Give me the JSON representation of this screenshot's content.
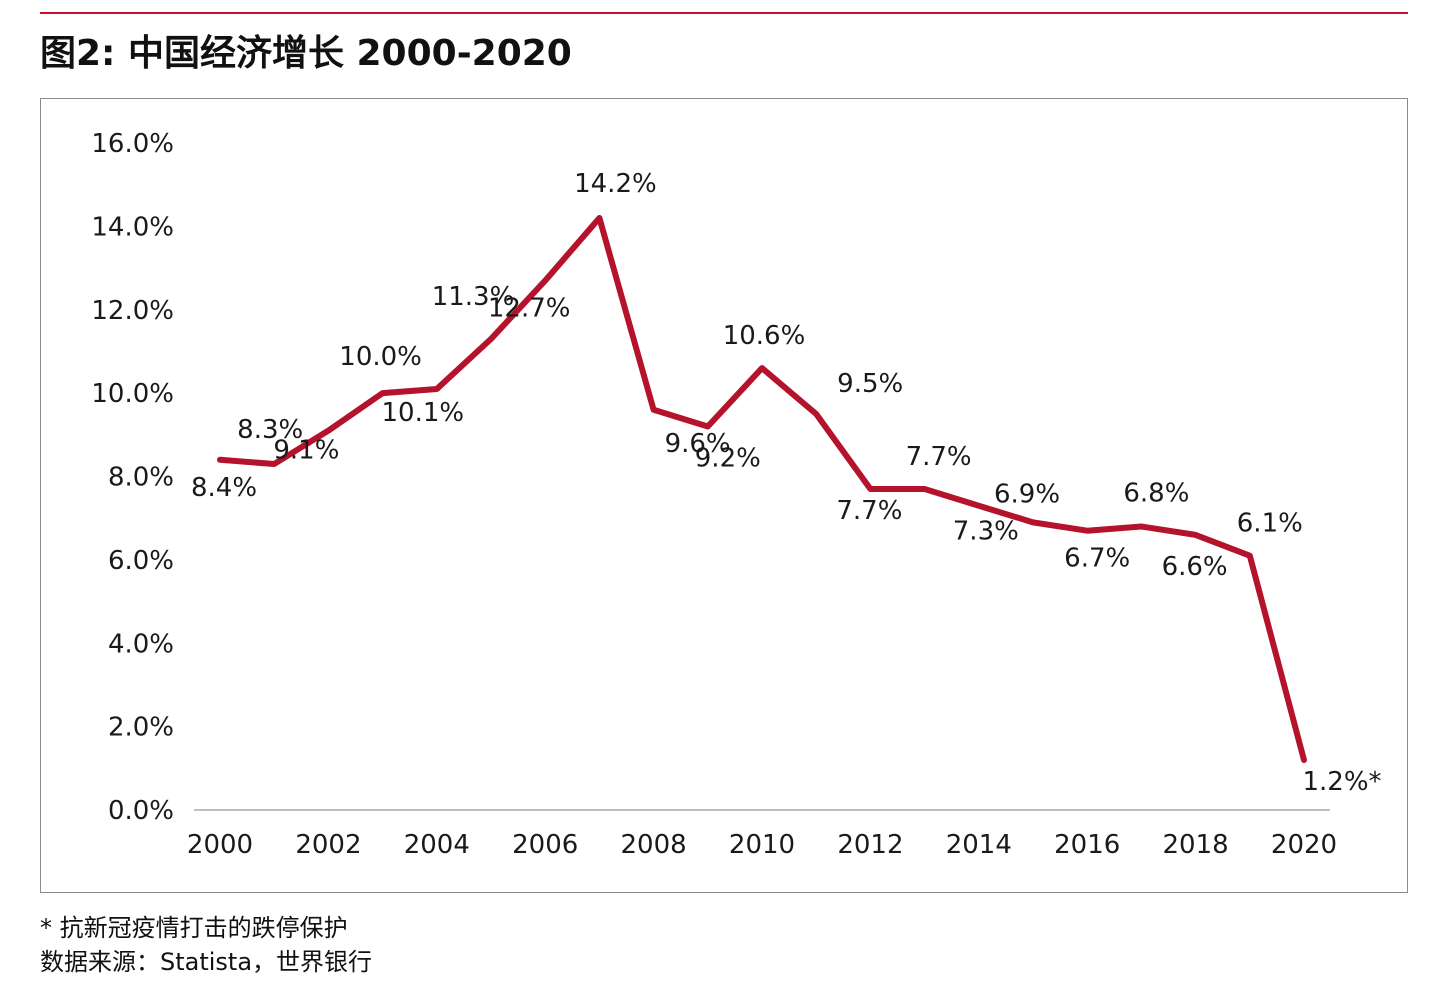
{
  "title": "图2: 中国经济增长 2000-2020",
  "footnote": "* 抗新冠疫情打击的跌停保护",
  "source": "数据来源：Statista，世界银行",
  "colors": {
    "accent": "#c8102e",
    "line": "#b5122b",
    "frame": "#8c8c8c"
  },
  "chart_data": {
    "type": "line",
    "title": "图2: 中国经济增长 2000-2020",
    "xlabel": "",
    "ylabel": "",
    "x": [
      2000,
      2001,
      2002,
      2003,
      2004,
      2005,
      2006,
      2007,
      2008,
      2009,
      2010,
      2011,
      2012,
      2013,
      2014,
      2015,
      2016,
      2017,
      2018,
      2019,
      2020
    ],
    "x_tick_labels": [
      "2000",
      "2002",
      "2004",
      "2006",
      "2008",
      "2010",
      "2012",
      "2014",
      "2016",
      "2018",
      "2020"
    ],
    "y_tick_labels": [
      "0.0%",
      "2.0%",
      "4.0%",
      "6.0%",
      "8.0%",
      "10.0%",
      "12.0%",
      "14.0%",
      "16.0%"
    ],
    "ylim": [
      0,
      16
    ],
    "grid": false,
    "legend": "none",
    "series": [
      {
        "values": [
          8.4,
          8.3,
          9.1,
          10.0,
          10.1,
          11.3,
          12.7,
          14.2,
          9.6,
          9.2,
          10.6,
          9.5,
          7.7,
          7.7,
          7.3,
          6.9,
          6.7,
          6.8,
          6.6,
          6.1,
          1.2
        ],
        "data_labels": [
          "8.4%",
          "8.3%",
          "9.1%",
          "10.0%",
          "10.1%",
          "11.3%",
          "12.7%",
          "14.2%",
          "9.6%",
          "9.2%",
          "10.6%",
          "9.5%",
          "7.7%",
          "7.7%",
          "7.3%",
          "6.9%",
          "6.7%",
          "6.8%",
          "6.6%",
          "6.1%",
          "1.2%*"
        ]
      }
    ]
  }
}
